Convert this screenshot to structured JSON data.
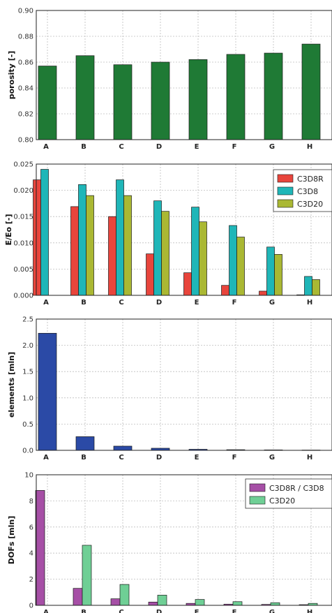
{
  "chart_data": [
    {
      "type": "bar",
      "title": "",
      "ylabel": "porosity [-]",
      "xlabel": "",
      "categories": [
        "A",
        "B",
        "C",
        "D",
        "E",
        "F",
        "G",
        "H"
      ],
      "ylim": [
        0.8,
        0.9
      ],
      "yticks": [
        "0.80",
        "0.82",
        "0.84",
        "0.86",
        "0.88",
        "0.90"
      ],
      "grid": true,
      "legend": "none",
      "series": [
        {
          "values": [
            0.857,
            0.865,
            0.858,
            0.86,
            0.862,
            0.866,
            0.867,
            0.874
          ],
          "color": "#1f7a35"
        }
      ]
    },
    {
      "type": "bar",
      "title": "",
      "ylabel": "E/Eo [-]",
      "xlabel": "",
      "categories": [
        "A",
        "B",
        "C",
        "D",
        "E",
        "F",
        "G",
        "H"
      ],
      "ylim": [
        0,
        0.025
      ],
      "yticks": [
        "0.000",
        "0.005",
        "0.010",
        "0.015",
        "0.020",
        "0.025"
      ],
      "grid": true,
      "legend": "top-right",
      "series": [
        {
          "name": "C3D8R",
          "values": [
            0.022,
            0.0169,
            0.015,
            0.0079,
            0.0043,
            0.0019,
            0.0008,
            0.0001
          ],
          "color": "#e8453c"
        },
        {
          "name": "C3D8",
          "values": [
            0.024,
            0.0211,
            0.022,
            0.018,
            0.0168,
            0.0133,
            0.0092,
            0.0036
          ],
          "color": "#1fb6b8"
        },
        {
          "name": "C3D20",
          "values": [
            null,
            0.019,
            0.019,
            0.016,
            0.014,
            0.0111,
            0.0078,
            0.003
          ],
          "color": "#aab833"
        }
      ]
    },
    {
      "type": "bar",
      "title": "",
      "ylabel": "elements [mln]",
      "xlabel": "",
      "categories": [
        "A",
        "B",
        "C",
        "D",
        "E",
        "F",
        "G",
        "H"
      ],
      "ylim": [
        0,
        2.5
      ],
      "yticks": [
        "0.0",
        "0.5",
        "1.0",
        "1.5",
        "2.0",
        "2.5"
      ],
      "grid": true,
      "legend": "none",
      "series": [
        {
          "values": [
            2.23,
            0.26,
            0.08,
            0.04,
            0.02,
            0.012,
            0.008,
            0.005
          ],
          "color": "#2b4aa6"
        }
      ]
    },
    {
      "type": "bar",
      "title": "",
      "ylabel": "DOFs [mln]",
      "xlabel": "",
      "categories": [
        "A",
        "B",
        "C",
        "D",
        "E",
        "F",
        "G",
        "H"
      ],
      "ylim": [
        0,
        10
      ],
      "yticks": [
        "0",
        "2",
        "4",
        "6",
        "8",
        "10"
      ],
      "grid": true,
      "legend": "top-right",
      "series": [
        {
          "name": "C3D8R / C3D8",
          "values": [
            8.8,
            1.3,
            0.5,
            0.25,
            0.15,
            0.09,
            0.07,
            0.05
          ],
          "color": "#a64fa6"
        },
        {
          "name": "C3D20",
          "values": [
            null,
            4.6,
            1.6,
            0.78,
            0.45,
            0.28,
            0.2,
            0.15
          ],
          "color": "#6fcf95"
        }
      ]
    }
  ]
}
